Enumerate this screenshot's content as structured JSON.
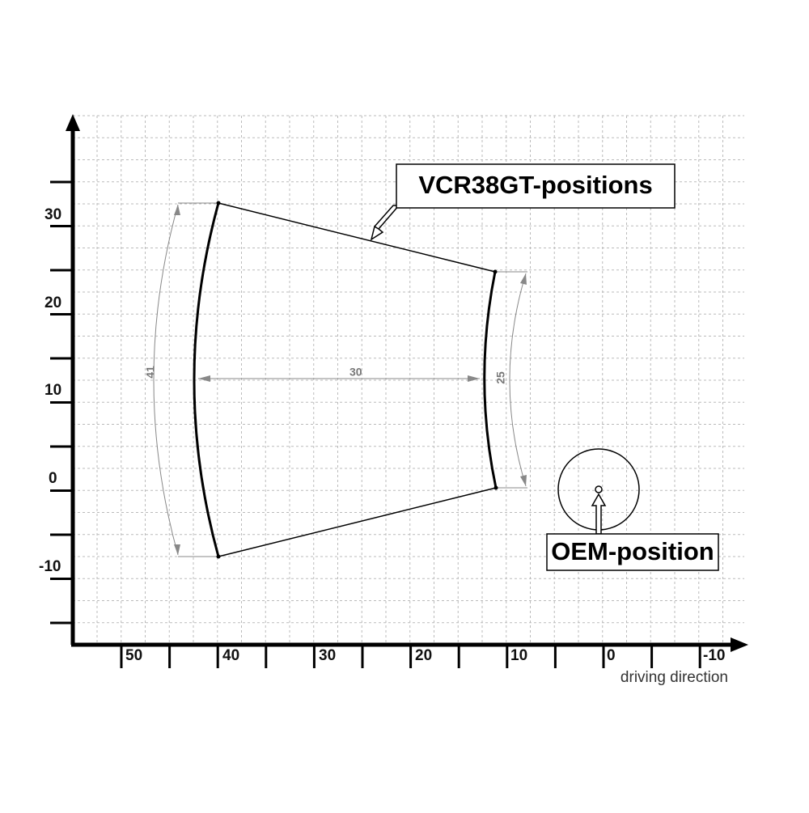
{
  "diagram": {
    "callouts": {
      "vcr": "VCR38GT-positions",
      "oem": "OEM-position"
    },
    "y_axis_labels": [
      "30",
      "20",
      "10",
      "0",
      "-10"
    ],
    "x_axis_labels": [
      "50",
      "40",
      "30",
      "20",
      "10",
      "0",
      "-10"
    ],
    "x_axis_title": "driving direction",
    "dimensions": {
      "left_arc": "41",
      "width": "30",
      "right_arc": "25"
    }
  }
}
